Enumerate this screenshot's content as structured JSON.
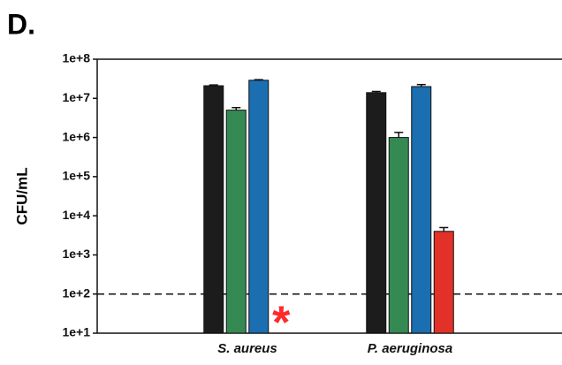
{
  "chart_data": {
    "type": "bar",
    "panel_label": "D.",
    "y_label": "CFU/mL",
    "log_scale": true,
    "categories": [
      "S. aureus",
      "P. aeruginosa"
    ],
    "series": [
      {
        "color": "#1c1c1c",
        "values": [
          21000000,
          14000000
        ],
        "errors": [
          1000000,
          1000000
        ]
      },
      {
        "color": "#358a54",
        "values": [
          5000000,
          1000000
        ],
        "errors": [
          800000,
          350000
        ]
      },
      {
        "color": "#1b6eb0",
        "values": [
          29000000,
          20000000
        ],
        "errors": [
          1000000,
          2500000
        ]
      },
      {
        "color": "#e23128",
        "values": [
          null,
          4000
        ],
        "errors": [
          null,
          1000
        ]
      }
    ],
    "annotation": "*",
    "annotation_color": "#ff2a2a",
    "reference_line": 100,
    "ylim": [
      10,
      100000000
    ],
    "yticks": [
      {
        "value": 10,
        "label": "1e+1"
      },
      {
        "value": 100,
        "label": "1e+2"
      },
      {
        "value": 1000,
        "label": "1e+3"
      },
      {
        "value": 10000,
        "label": "1e+4"
      },
      {
        "value": 100000,
        "label": "1e+5"
      },
      {
        "value": 1000000,
        "label": "1e+6"
      },
      {
        "value": 10000000,
        "label": "1e+7"
      },
      {
        "value": 100000000,
        "label": "1e+8"
      }
    ]
  }
}
